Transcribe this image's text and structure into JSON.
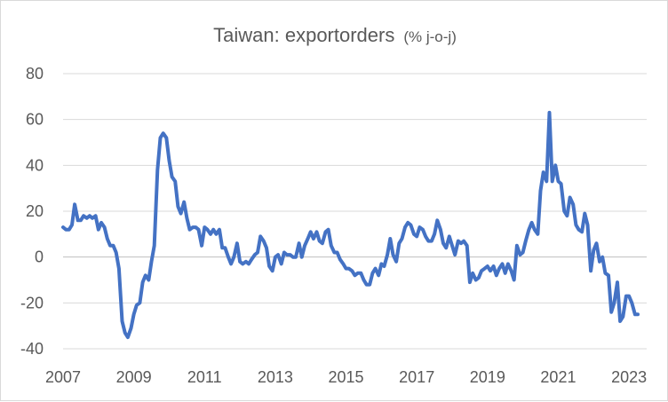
{
  "chart_data": {
    "type": "line",
    "title": "Taiwan: exportorders",
    "subtitle": "(% j-o-j)",
    "xlabel": "",
    "ylabel": "",
    "ylim": [
      -40,
      80
    ],
    "xlim": [
      2007,
      2023.5
    ],
    "y_ticks": [
      "80",
      "60",
      "40",
      "20",
      "0",
      "-20",
      "-40"
    ],
    "y_tick_values": [
      80,
      60,
      40,
      20,
      0,
      -20,
      -40
    ],
    "x_ticks": [
      "2007",
      "2009",
      "2011",
      "2013",
      "2015",
      "2017",
      "2019",
      "2021",
      "2023"
    ],
    "x_tick_values": [
      2007,
      2009,
      2011,
      2013,
      2015,
      2017,
      2019,
      2021,
      2023
    ],
    "grid": "horizontal",
    "line_color": "#4472c4",
    "series": [
      {
        "x": [
          2007.0,
          2007.08,
          2007.17,
          2007.25,
          2007.33,
          2007.42,
          2007.5,
          2007.58,
          2007.67,
          2007.75,
          2007.83,
          2007.92,
          2008.0,
          2008.08,
          2008.17,
          2008.25,
          2008.33,
          2008.42,
          2008.5,
          2008.58,
          2008.67,
          2008.75,
          2008.83,
          2008.92,
          2009.0,
          2009.08,
          2009.17,
          2009.25,
          2009.33,
          2009.42,
          2009.5,
          2009.58,
          2009.67,
          2009.75,
          2009.83,
          2009.92,
          2010.0,
          2010.08,
          2010.17,
          2010.25,
          2010.33,
          2010.42,
          2010.5,
          2010.58,
          2010.67,
          2010.75,
          2010.83,
          2010.92,
          2011.0,
          2011.08,
          2011.17,
          2011.25,
          2011.33,
          2011.42,
          2011.5,
          2011.58,
          2011.67,
          2011.75,
          2011.83,
          2011.92,
          2012.0,
          2012.08,
          2012.17,
          2012.25,
          2012.33,
          2012.42,
          2012.5,
          2012.58,
          2012.67,
          2012.75,
          2012.83,
          2012.92,
          2013.0,
          2013.08,
          2013.17,
          2013.25,
          2013.33,
          2013.42,
          2013.5,
          2013.58,
          2013.67,
          2013.75,
          2013.83,
          2013.92,
          2014.0,
          2014.08,
          2014.17,
          2014.25,
          2014.33,
          2014.42,
          2014.5,
          2014.58,
          2014.67,
          2014.75,
          2014.83,
          2014.92,
          2015.0,
          2015.08,
          2015.17,
          2015.25,
          2015.33,
          2015.42,
          2015.5,
          2015.58,
          2015.67,
          2015.75,
          2015.83,
          2015.92,
          2016.0,
          2016.08,
          2016.17,
          2016.25,
          2016.33,
          2016.42,
          2016.5,
          2016.58,
          2016.67,
          2016.75,
          2016.83,
          2016.92,
          2017.0,
          2017.08,
          2017.17,
          2017.25,
          2017.33,
          2017.42,
          2017.5,
          2017.58,
          2017.67,
          2017.75,
          2017.83,
          2017.92,
          2018.0,
          2018.08,
          2018.17,
          2018.25,
          2018.33,
          2018.42,
          2018.5,
          2018.58,
          2018.67,
          2018.75,
          2018.83,
          2018.92,
          2019.0,
          2019.08,
          2019.17,
          2019.25,
          2019.33,
          2019.42,
          2019.5,
          2019.58,
          2019.67,
          2019.75,
          2019.83,
          2019.92,
          2020.0,
          2020.08,
          2020.17,
          2020.25,
          2020.33,
          2020.42,
          2020.5,
          2020.58,
          2020.67,
          2020.75,
          2020.83,
          2020.92,
          2021.0,
          2021.08,
          2021.17,
          2021.25,
          2021.33,
          2021.42,
          2021.5,
          2021.58,
          2021.67,
          2021.75,
          2021.83,
          2021.92,
          2022.0,
          2022.08,
          2022.17,
          2022.25,
          2022.33,
          2022.42,
          2022.5,
          2022.58,
          2022.67,
          2022.75,
          2022.83,
          2022.92,
          2023.0,
          2023.08,
          2023.17,
          2023.25
        ],
        "y": [
          13,
          12,
          12,
          14,
          23,
          16,
          16,
          18,
          17,
          18,
          17,
          18,
          12,
          15,
          13,
          8,
          5,
          5,
          2,
          -5,
          -28,
          -33,
          -35,
          -31,
          -25,
          -21,
          -20,
          -11,
          -8,
          -10,
          -2,
          5,
          38,
          52,
          54,
          52,
          42,
          35,
          33,
          22,
          19,
          24,
          17,
          12,
          13,
          13,
          12,
          5,
          13,
          12,
          10,
          12,
          10,
          12,
          4,
          4,
          0,
          -3,
          0,
          6,
          -2,
          -3,
          -2,
          -3,
          -1,
          1,
          2,
          9,
          7,
          4,
          -4,
          -6,
          0,
          1,
          -3,
          2,
          1,
          1,
          0,
          0,
          6,
          0,
          5,
          8,
          11,
          8,
          11,
          7,
          6,
          11,
          12,
          5,
          2,
          2,
          -1,
          -3,
          -5,
          -5,
          -6,
          -8,
          -7,
          -7,
          -10,
          -12,
          -12,
          -7,
          -5,
          -8,
          -3,
          -4,
          1,
          8,
          1,
          -2,
          6,
          8,
          13,
          15,
          14,
          10,
          9,
          13,
          12,
          9,
          7,
          7,
          10,
          16,
          12,
          6,
          4,
          9,
          5,
          1,
          7,
          6,
          7,
          5,
          -11,
          -7,
          -10,
          -9,
          -6,
          -5,
          -4,
          -6,
          -4,
          -8,
          -5,
          -3,
          -7,
          -3,
          -6,
          -10,
          5,
          1,
          2,
          7,
          12,
          15,
          12,
          10,
          29,
          37,
          33,
          63,
          33,
          40,
          33,
          32,
          20,
          18,
          26,
          23,
          14,
          12,
          11,
          19,
          14,
          -6,
          3,
          6,
          -2,
          0,
          -7,
          -8,
          -24,
          -20,
          -11,
          -28,
          -26,
          -17,
          -17,
          -20,
          -25,
          -25
        ]
      }
    ]
  }
}
